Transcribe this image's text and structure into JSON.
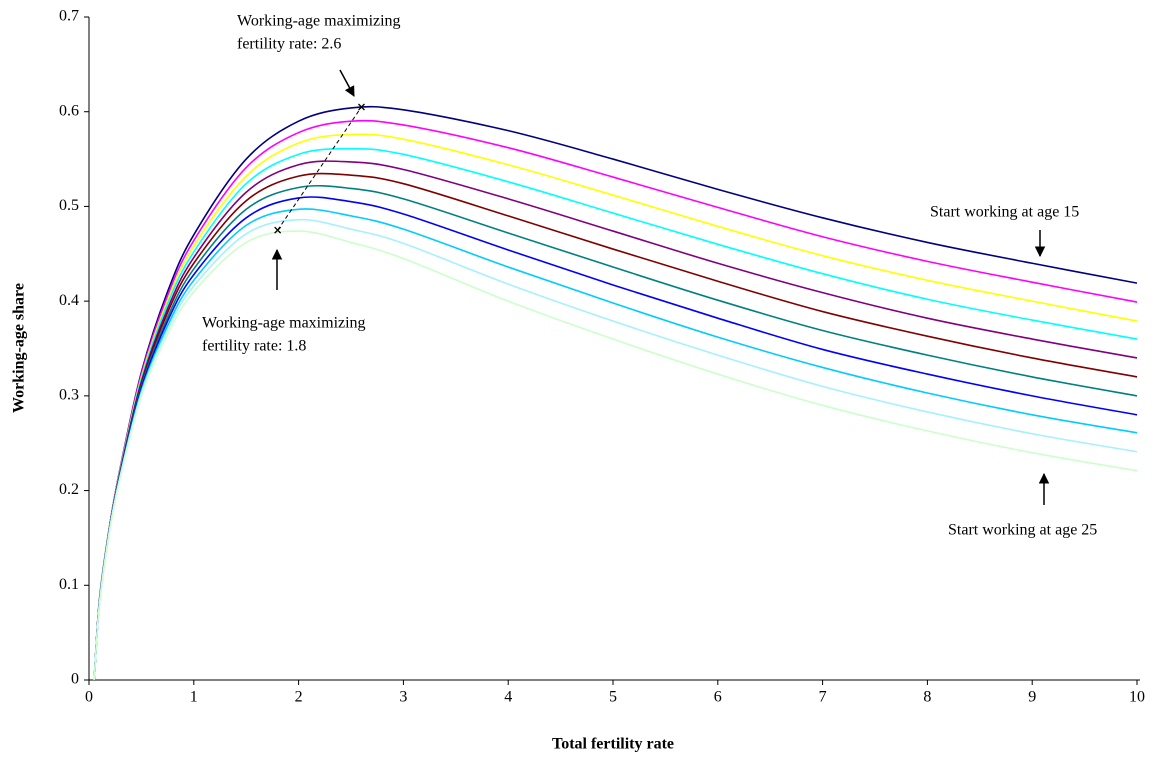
{
  "chart_data": {
    "type": "line",
    "x_label": "Total fertility rate",
    "y_label": "Working-age share",
    "x": [
      0.05,
      0.1,
      0.2,
      0.3,
      0.5,
      0.75,
      1,
      1.5,
      2,
      2.5,
      3,
      4,
      5,
      6,
      7,
      8,
      9,
      10
    ],
    "series": [
      {
        "color": "#000080",
        "values": [
          0,
          0.085,
          0.165,
          0.225,
          0.325,
          0.41,
          0.47,
          0.55,
          0.59,
          0.604,
          0.602,
          0.58,
          0.55,
          0.518,
          0.488,
          0.462,
          0.44,
          0.419
        ]
      },
      {
        "color": "#ff00ff",
        "values": [
          0,
          0.085,
          0.165,
          0.224,
          0.323,
          0.406,
          0.464,
          0.541,
          0.578,
          0.59,
          0.586,
          0.562,
          0.531,
          0.499,
          0.468,
          0.442,
          0.42,
          0.399
        ]
      },
      {
        "color": "#ffff00",
        "values": [
          0,
          0.084,
          0.164,
          0.223,
          0.32,
          0.401,
          0.458,
          0.532,
          0.567,
          0.576,
          0.571,
          0.544,
          0.512,
          0.479,
          0.448,
          0.422,
          0.4,
          0.379
        ]
      },
      {
        "color": "#00ffff",
        "values": [
          0,
          0.084,
          0.164,
          0.222,
          0.318,
          0.397,
          0.452,
          0.524,
          0.555,
          0.561,
          0.555,
          0.526,
          0.493,
          0.46,
          0.429,
          0.402,
          0.38,
          0.36
        ]
      },
      {
        "color": "#800080",
        "values": [
          0,
          0.083,
          0.163,
          0.221,
          0.315,
          0.392,
          0.446,
          0.515,
          0.544,
          0.547,
          0.539,
          0.508,
          0.474,
          0.44,
          0.409,
          0.382,
          0.36,
          0.34
        ]
      },
      {
        "color": "#800000",
        "values": [
          0,
          0.083,
          0.163,
          0.22,
          0.313,
          0.388,
          0.44,
          0.506,
          0.532,
          0.533,
          0.524,
          0.49,
          0.455,
          0.421,
          0.389,
          0.363,
          0.34,
          0.32
        ]
      },
      {
        "color": "#008080",
        "values": [
          0,
          0.082,
          0.162,
          0.219,
          0.31,
          0.383,
          0.434,
          0.497,
          0.52,
          0.519,
          0.508,
          0.472,
          0.436,
          0.401,
          0.369,
          0.343,
          0.32,
          0.3
        ]
      },
      {
        "color": "#0000ff",
        "values": [
          0,
          0.082,
          0.162,
          0.218,
          0.308,
          0.379,
          0.428,
          0.488,
          0.509,
          0.505,
          0.492,
          0.454,
          0.417,
          0.382,
          0.349,
          0.323,
          0.3,
          0.28
        ]
      },
      {
        "color": "#00ccff",
        "values": [
          0,
          0.081,
          0.161,
          0.217,
          0.305,
          0.374,
          0.422,
          0.48,
          0.497,
          0.49,
          0.476,
          0.436,
          0.398,
          0.362,
          0.33,
          0.303,
          0.28,
          0.261
        ]
      },
      {
        "color": "#a6f0ff",
        "values": [
          0,
          0.081,
          0.161,
          0.216,
          0.303,
          0.37,
          0.416,
          0.471,
          0.486,
          0.476,
          0.461,
          0.418,
          0.379,
          0.343,
          0.31,
          0.283,
          0.26,
          0.241
        ]
      },
      {
        "color": "#ccffcc",
        "values": [
          0,
          0.08,
          0.16,
          0.215,
          0.3,
          0.365,
          0.41,
          0.462,
          0.474,
          0.462,
          0.445,
          0.4,
          0.36,
          0.323,
          0.29,
          0.263,
          0.24,
          0.221
        ]
      }
    ],
    "maxima": {
      "x": [
        1.8,
        2.6
      ],
      "y": [
        0.475,
        0.605
      ]
    },
    "annotations": [
      {
        "lines": [
          "Working-age maximizing",
          "fertility rate: 2.6"
        ]
      },
      {
        "lines": [
          "Working-age maximizing",
          "fertility rate: 1.8"
        ]
      },
      {
        "lines": [
          "Start working at age 15"
        ]
      },
      {
        "lines": [
          "Start working at age 25"
        ]
      }
    ],
    "xlim": [
      0,
      10
    ],
    "ylim": [
      0,
      0.7
    ],
    "xticks": [
      0,
      1,
      2,
      3,
      4,
      5,
      6,
      7,
      8,
      9,
      10
    ],
    "yticks": [
      0,
      0.1,
      0.2,
      0.3,
      0.4,
      0.5,
      0.6,
      0.7
    ]
  }
}
